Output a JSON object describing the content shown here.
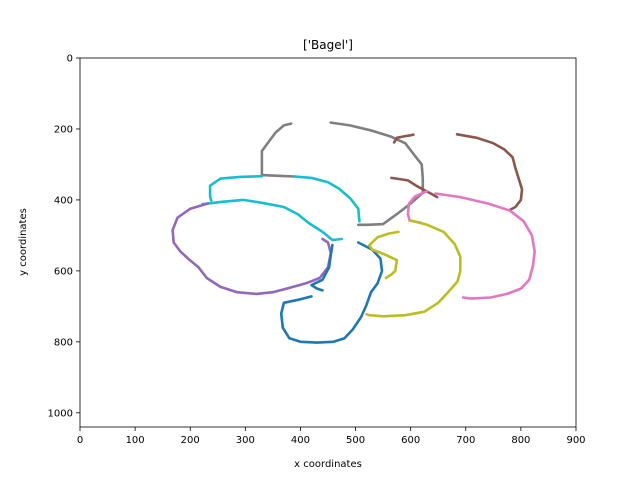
{
  "chart_data": {
    "type": "line",
    "title": "['Bagel']",
    "xlabel": "x coordinates",
    "ylabel": "y coordinates",
    "xlim": [
      0,
      900
    ],
    "ylim": [
      1040,
      0
    ],
    "y_inverted": true,
    "x_ticks": [
      0,
      100,
      200,
      300,
      400,
      500,
      600,
      700,
      800,
      900
    ],
    "y_ticks": [
      0,
      200,
      400,
      600,
      800,
      1000
    ],
    "grid": false,
    "legend": "none",
    "series": [
      {
        "color": "#7f7f7f",
        "points": [
          [
            383,
            185
          ],
          [
            370,
            190
          ],
          [
            355,
            210
          ],
          [
            330,
            262
          ],
          [
            330,
            330
          ],
          [
            360,
            332
          ],
          [
            390,
            334
          ]
        ]
      },
      {
        "color": "#7f7f7f",
        "points": [
          [
            455,
            182
          ],
          [
            490,
            190
          ],
          [
            530,
            205
          ],
          [
            565,
            222
          ],
          [
            590,
            240
          ],
          [
            605,
            270
          ],
          [
            620,
            300
          ],
          [
            622,
            340
          ],
          [
            622,
            380
          ],
          [
            600,
            410
          ],
          [
            575,
            440
          ],
          [
            550,
            468
          ],
          [
            520,
            470
          ],
          [
            505,
            470
          ]
        ]
      },
      {
        "color": "#8c564b",
        "points": [
          [
            570,
            238
          ],
          [
            575,
            225
          ],
          [
            590,
            220
          ],
          [
            600,
            218
          ],
          [
            605,
            216
          ]
        ]
      },
      {
        "color": "#8c564b",
        "points": [
          [
            565,
            338
          ],
          [
            595,
            345
          ],
          [
            610,
            360
          ],
          [
            640,
            385
          ],
          [
            648,
            392
          ]
        ]
      },
      {
        "color": "#8c564b",
        "points": [
          [
            684,
            215
          ],
          [
            720,
            225
          ],
          [
            750,
            240
          ],
          [
            770,
            258
          ],
          [
            785,
            280
          ],
          [
            790,
            310
          ],
          [
            796,
            340
          ],
          [
            802,
            370
          ],
          [
            800,
            400
          ],
          [
            790,
            420
          ],
          [
            780,
            428
          ]
        ]
      },
      {
        "color": "#e377c2",
        "points": [
          [
            630,
            375
          ],
          [
            608,
            390
          ],
          [
            597,
            410
          ],
          [
            595,
            440
          ],
          [
            598,
            458
          ],
          [
            620,
            465
          ]
        ]
      },
      {
        "color": "#e377c2",
        "points": [
          [
            645,
            382
          ],
          [
            690,
            392
          ],
          [
            740,
            410
          ],
          [
            780,
            430
          ],
          [
            805,
            460
          ],
          [
            820,
            500
          ],
          [
            825,
            545
          ],
          [
            822,
            585
          ],
          [
            815,
            625
          ],
          [
            800,
            650
          ],
          [
            775,
            665
          ],
          [
            745,
            675
          ],
          [
            710,
            678
          ],
          [
            695,
            675
          ]
        ]
      },
      {
        "color": "#17becf",
        "points": [
          [
            330,
            333
          ],
          [
            290,
            335
          ],
          [
            255,
            340
          ],
          [
            236,
            360
          ],
          [
            236,
            390
          ],
          [
            238,
            402
          ]
        ]
      },
      {
        "color": "#17becf",
        "points": [
          [
            390,
            334
          ],
          [
            420,
            338
          ],
          [
            450,
            350
          ],
          [
            470,
            368
          ],
          [
            490,
            395
          ],
          [
            505,
            425
          ],
          [
            507,
            460
          ]
        ]
      },
      {
        "color": "#17becf",
        "points": [
          [
            222,
            412
          ],
          [
            260,
            405
          ],
          [
            296,
            400
          ],
          [
            330,
            408
          ],
          [
            370,
            420
          ],
          [
            395,
            440
          ],
          [
            415,
            465
          ],
          [
            440,
            490
          ],
          [
            458,
            513
          ],
          [
            475,
            510
          ]
        ]
      },
      {
        "color": "#9467bd",
        "points": [
          [
            232,
            410
          ],
          [
            200,
            425
          ],
          [
            177,
            450
          ],
          [
            168,
            485
          ],
          [
            170,
            520
          ],
          [
            182,
            545
          ],
          [
            198,
            568
          ],
          [
            215,
            590
          ],
          [
            230,
            620
          ],
          [
            255,
            645
          ],
          [
            285,
            660
          ],
          [
            320,
            665
          ],
          [
            350,
            660
          ],
          [
            380,
            648
          ],
          [
            410,
            635
          ],
          [
            435,
            620
          ],
          [
            450,
            590
          ],
          [
            455,
            550
          ],
          [
            450,
            520
          ],
          [
            440,
            510
          ]
        ]
      },
      {
        "color": "#1f77b4",
        "points": [
          [
            458,
            527
          ],
          [
            455,
            555
          ],
          [
            452,
            590
          ],
          [
            440,
            625
          ],
          [
            420,
            640
          ],
          [
            430,
            650
          ],
          [
            440,
            655
          ]
        ]
      },
      {
        "color": "#1f77b4",
        "points": [
          [
            505,
            520
          ],
          [
            530,
            540
          ],
          [
            545,
            565
          ],
          [
            548,
            600
          ],
          [
            540,
            635
          ],
          [
            528,
            660
          ],
          [
            520,
            695
          ],
          [
            510,
            730
          ],
          [
            495,
            765
          ],
          [
            480,
            790
          ],
          [
            460,
            800
          ],
          [
            430,
            802
          ],
          [
            400,
            800
          ],
          [
            380,
            790
          ],
          [
            368,
            760
          ],
          [
            365,
            720
          ],
          [
            370,
            690
          ],
          [
            400,
            680
          ],
          [
            420,
            672
          ]
        ]
      },
      {
        "color": "#bcbd22",
        "points": [
          [
            578,
            490
          ],
          [
            560,
            495
          ],
          [
            540,
            505
          ],
          [
            525,
            528
          ],
          [
            530,
            540
          ],
          [
            555,
            555
          ],
          [
            575,
            570
          ],
          [
            572,
            600
          ],
          [
            565,
            610
          ],
          [
            555,
            620
          ]
        ]
      },
      {
        "color": "#bcbd22",
        "points": [
          [
            600,
            458
          ],
          [
            630,
            470
          ],
          [
            660,
            490
          ],
          [
            680,
            525
          ],
          [
            690,
            560
          ],
          [
            690,
            600
          ],
          [
            685,
            630
          ],
          [
            668,
            660
          ],
          [
            650,
            690
          ],
          [
            625,
            715
          ],
          [
            590,
            725
          ],
          [
            550,
            728
          ],
          [
            525,
            725
          ],
          [
            520,
            722
          ]
        ]
      }
    ]
  }
}
